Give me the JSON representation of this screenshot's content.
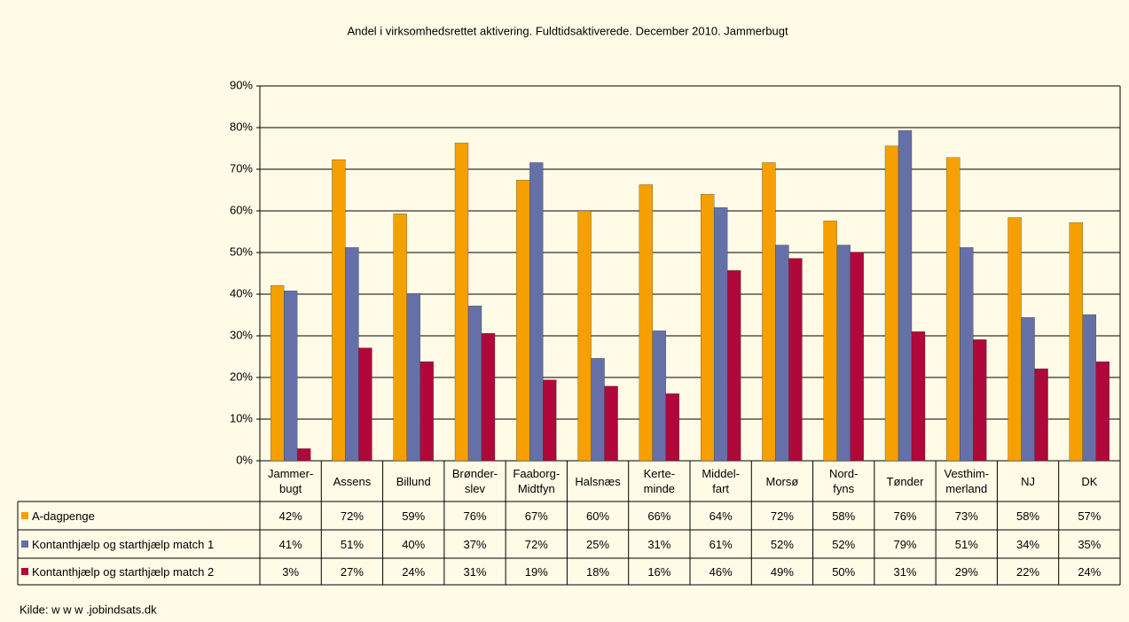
{
  "chart_data": {
    "type": "bar",
    "title": "Andel i virksomhedsrettet aktivering. Fuldtidsaktiverede. December 2010. Jammerbugt",
    "categories": [
      "Jammer-\nbugt",
      "Assens",
      "Billund",
      "Brønder-\nslev",
      "Faaborg-\nMidtfyn",
      "Halsnæs",
      "Kerte-\nminde",
      "Middel-\nfart",
      "Morsø",
      "Nord-\nfyns",
      "Tønder",
      "Vesthim-\nmerland",
      "NJ",
      "DK"
    ],
    "series": [
      {
        "name": "A-dagpenge",
        "color": "#f5a000",
        "values": [
          42.1,
          72.3,
          59.3,
          76.3,
          67.4,
          60.0,
          66.3,
          64.0,
          71.6,
          57.6,
          75.6,
          72.8,
          58.4,
          57.2
        ],
        "value_labels": [
          "42%",
          "72%",
          "59%",
          "76%",
          "67%",
          "60%",
          "66%",
          "64%",
          "72%",
          "58%",
          "76%",
          "73%",
          "58%",
          "57%"
        ]
      },
      {
        "name": "Kontanthjælp og starthjælp match 1",
        "color": "#6670a8",
        "values": [
          40.8,
          51.2,
          40.2,
          37.2,
          71.6,
          24.6,
          31.2,
          60.8,
          51.8,
          51.8,
          79.3,
          51.2,
          34.4,
          35.1
        ],
        "value_labels": [
          "41%",
          "51%",
          "40%",
          "37%",
          "72%",
          "25%",
          "31%",
          "61%",
          "52%",
          "52%",
          "79%",
          "51%",
          "34%",
          "35%"
        ]
      },
      {
        "name": "Kontanthjælp og starthjælp match 2",
        "color": "#b0083a",
        "values": [
          2.9,
          27.1,
          23.8,
          30.6,
          19.4,
          17.9,
          16.1,
          45.7,
          48.6,
          50.1,
          31.0,
          29.1,
          22.1,
          23.8
        ],
        "value_labels": [
          "3%",
          "27%",
          "24%",
          "31%",
          "19%",
          "18%",
          "16%",
          "46%",
          "49%",
          "50%",
          "31%",
          "29%",
          "22%",
          "24%"
        ]
      }
    ],
    "ylim": [
      0,
      90
    ],
    "yticks": [
      {
        "value": 0,
        "label": "0%"
      },
      {
        "value": 10,
        "label": "10%"
      },
      {
        "value": 20,
        "label": "20%"
      },
      {
        "value": 30,
        "label": "30%"
      },
      {
        "value": 40,
        "label": "40%"
      },
      {
        "value": 50,
        "label": "50%"
      },
      {
        "value": 60,
        "label": "60%"
      },
      {
        "value": 70,
        "label": "70%"
      },
      {
        "value": 80,
        "label": "80%"
      },
      {
        "value": 90,
        "label": "90%"
      }
    ],
    "grid": true,
    "source": "Kilde: w w w .jobindsats.dk"
  }
}
